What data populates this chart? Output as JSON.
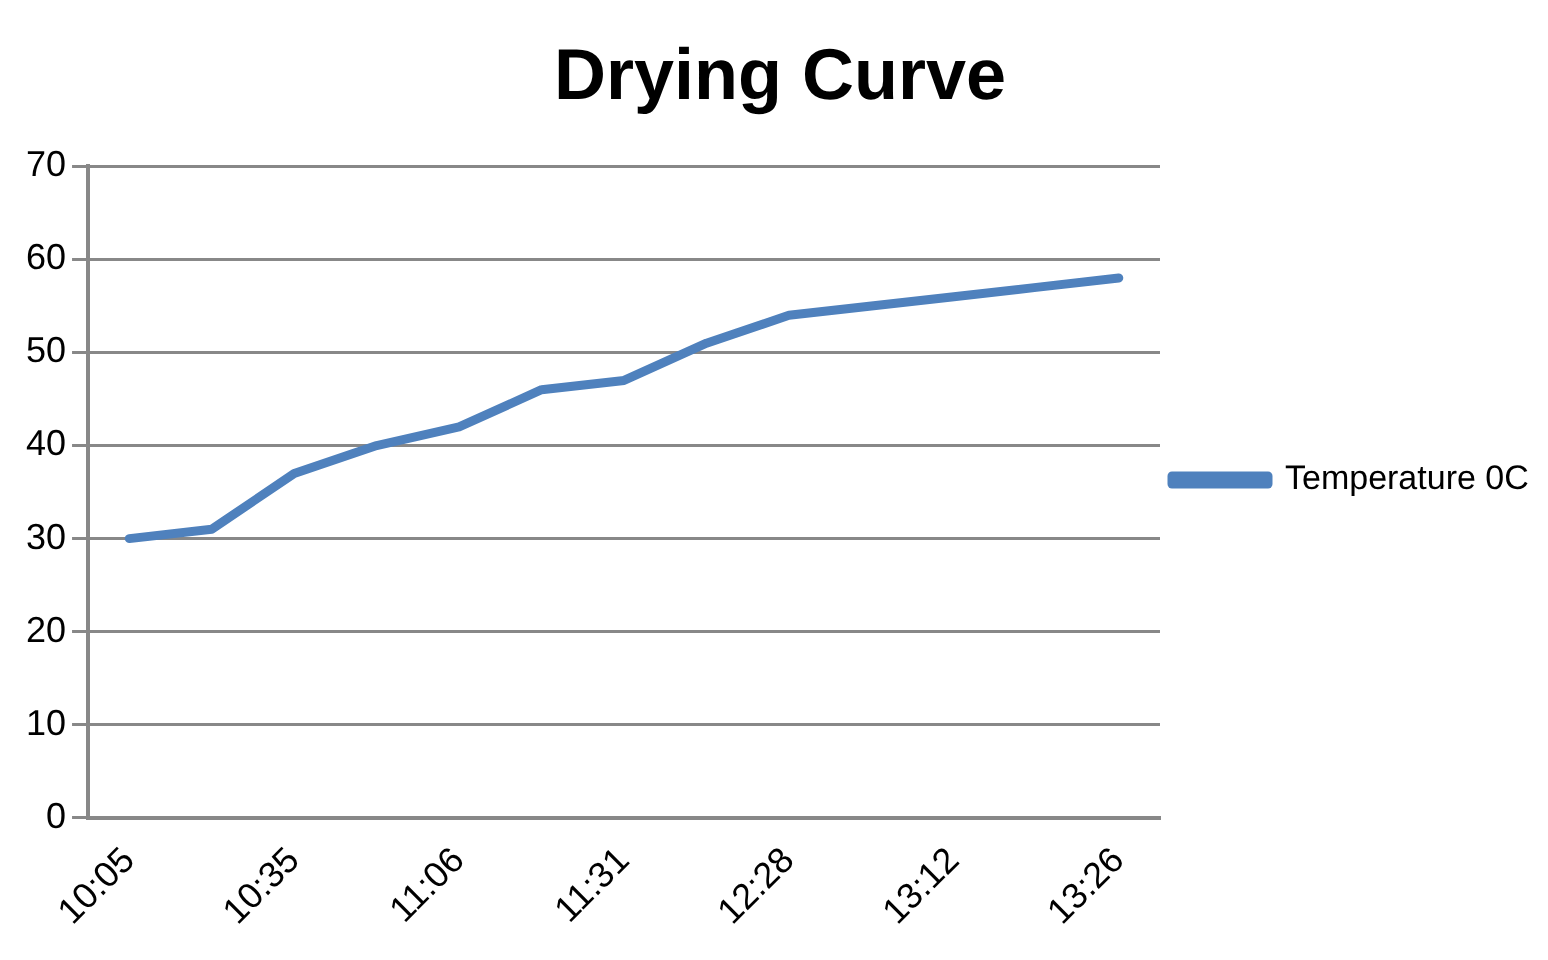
{
  "chart_data": {
    "type": "line",
    "title": "Drying Curve",
    "categories": [
      "10:05",
      null,
      "10:35",
      null,
      "11:06",
      null,
      "11:31",
      null,
      "12:28",
      null,
      "13:12",
      null,
      "13:26"
    ],
    "series": [
      {
        "name": "Temperature 0C",
        "color": "#4f81bd",
        "values": [
          30,
          31,
          37,
          40,
          42,
          46,
          47,
          51,
          54,
          55,
          56,
          57,
          58
        ]
      }
    ],
    "ylim": [
      0,
      70
    ],
    "yticks": [
      0,
      10,
      20,
      30,
      40,
      50,
      60,
      70
    ],
    "grid": "y",
    "legend": "right",
    "marker": "none",
    "line_style": "solid"
  }
}
